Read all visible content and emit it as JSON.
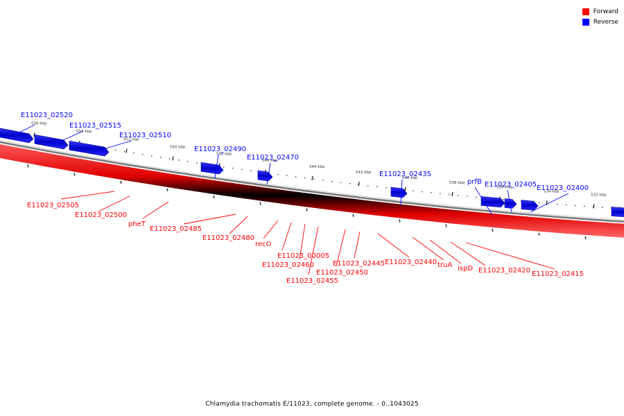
{
  "colors": {
    "forward": "#ff0000",
    "reverse": "#0000ff",
    "backbone": "#888888"
  },
  "legend": [
    {
      "label": "Forward",
      "color": "#ff0000"
    },
    {
      "label": "Reverse",
      "color": "#0000ff"
    }
  ],
  "caption": "Chlamydia trachomatis E/11023, complete genome. - 0..1043025",
  "ticks": [
    "556 kbp",
    "554 kbp",
    "552 kbp",
    "550 kbp",
    "548 kbp",
    "546 kbp",
    "544 kbp",
    "542 kbp",
    "540 kbp",
    "538 kbp",
    "536 kbp",
    "534 kbp",
    "532 kbp"
  ],
  "reverse_genes": [
    "E11023_02520",
    "E11023_02515",
    "E11023_02510",
    "E11023_02490",
    "E11023_02470",
    "E11023_02435",
    "prfB",
    "E11023_02405",
    "E11023_02400"
  ],
  "forward_genes": [
    "E11023_02505",
    "E11023_02500",
    "pheT",
    "E11023_02485",
    "E11023_02480",
    "recO",
    "E11023_00005",
    "E11023_02460",
    "E11023_02455",
    "E11023_02450",
    "E11023_02445",
    "E11023_02440",
    "truA",
    "ispD",
    "E11023_02420",
    "E11023_02415"
  ]
}
